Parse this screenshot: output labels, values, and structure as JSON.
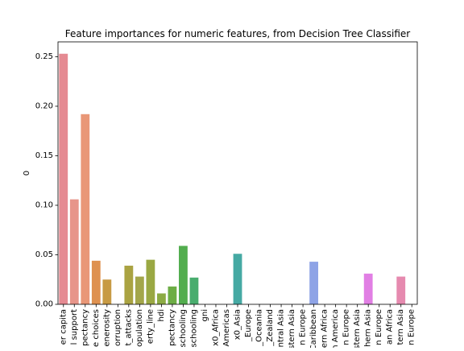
{
  "chart_data": {
    "type": "bar",
    "title": "Feature importances for numeric features, from Decision Tree Classifier",
    "ylabel": "0",
    "xlabel": "",
    "ylim": [
      0,
      0.265
    ],
    "yticks": [
      0.0,
      0.05,
      0.1,
      0.15,
      0.2,
      0.25
    ],
    "ytick_labels": [
      "0.00",
      "0.05",
      "0.10",
      "0.15",
      "0.20",
      "0.25"
    ],
    "grid": false,
    "categories": [
      "er capita",
      "l support",
      "pectancy",
      "e choices",
      "enerosity",
      "orruption",
      "t_attacks",
      "opulation",
      "erty_line",
      "hdi",
      "pectancy",
      "schooling",
      "schooling",
      "gni",
      "x0_Africa",
      "Americas",
      "x0_Asia",
      "_Europe",
      "_Oceania",
      "_Zealand",
      "ntral Asia",
      "stern Asia",
      "n Europe",
      "Caribbean",
      "ern Africa",
      "n America",
      "n Europe",
      "stern Asia",
      "hern Asia",
      "n Europe",
      "an Africa",
      "tern Asia",
      "n Europe"
    ],
    "values": [
      0.253,
      0.106,
      0.192,
      0.044,
      0.025,
      0.0,
      0.039,
      0.028,
      0.045,
      0.011,
      0.018,
      0.059,
      0.027,
      0.0,
      0.0,
      0.0,
      0.051,
      0.0,
      0.0,
      0.0,
      0.0,
      0.0,
      0.0,
      0.043,
      0.0,
      0.0,
      0.0,
      0.0,
      0.031,
      0.0,
      0.0,
      0.028,
      0.0
    ],
    "colors": [
      "#e58a92",
      "#e7958a",
      "#e99777",
      "#de9150",
      "#c79a44",
      "#b9a043",
      "#aaa342",
      "#a3a64a",
      "#9aa843",
      "#8cab44",
      "#6dad45",
      "#52ad4e",
      "#49ad6e",
      "#48ab84",
      "#47aa91",
      "#47a99a",
      "#45a9a3",
      "#48a8b0",
      "#49a6bb",
      "#4ca3c6",
      "#57a0d3",
      "#729be0",
      "#8b9ae9",
      "#8ea3e6",
      "#a28fe9",
      "#b98be7",
      "#c786e3",
      "#d580de",
      "#e17fe4",
      "#e57fce",
      "#e782bc",
      "#e68aaf",
      "#e691a4"
    ]
  }
}
